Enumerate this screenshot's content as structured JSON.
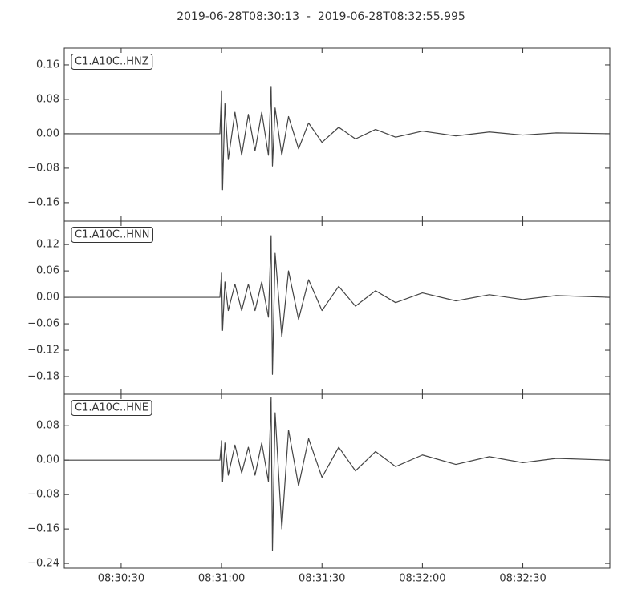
{
  "title": "2019-06-28T08:30:13  -  2019-06-28T08:32:55.995",
  "chart_data": [
    {
      "type": "line",
      "label": "C1.A10C..HNZ",
      "color": "#444444",
      "xlim": [
        30613,
        30775.995
      ],
      "ylim": [
        -0.203,
        0.199
      ],
      "yticks": [
        {
          "value": -0.16,
          "label": "−0.16"
        },
        {
          "value": -0.08,
          "label": "−0.08"
        },
        {
          "value": 0,
          "label": "0.00"
        },
        {
          "value": 0.08,
          "label": "0.08"
        },
        {
          "value": 0.16,
          "label": "0.16"
        }
      ],
      "x": [
        30613,
        30659.5,
        30660,
        30660.3,
        30661,
        30662,
        30664,
        30666,
        30668,
        30670,
        30672,
        30674,
        30674.8,
        30675.2,
        30676,
        30678,
        30680,
        30683,
        30686,
        30690,
        30695,
        30700,
        30706,
        30712,
        30720,
        30730,
        30740,
        30750,
        30760,
        30775.9
      ],
      "values": [
        0,
        0,
        0.1,
        -0.13,
        0.07,
        -0.06,
        0.05,
        -0.05,
        0.045,
        -0.04,
        0.05,
        -0.05,
        0.11,
        -0.075,
        0.06,
        -0.05,
        0.04,
        -0.035,
        0.025,
        -0.02,
        0.015,
        -0.012,
        0.01,
        -0.008,
        0.006,
        -0.005,
        0.004,
        -0.003,
        0.002,
        0
      ]
    },
    {
      "type": "line",
      "label": "C1.A10C..HNN",
      "color": "#444444",
      "xlim": [
        30613,
        30775.995
      ],
      "ylim": [
        -0.22,
        0.173
      ],
      "yticks": [
        {
          "value": -0.18,
          "label": "−0.18"
        },
        {
          "value": -0.12,
          "label": "−0.12"
        },
        {
          "value": -0.06,
          "label": "−0.06"
        },
        {
          "value": 0,
          "label": "0.00"
        },
        {
          "value": 0.06,
          "label": "0.06"
        },
        {
          "value": 0.12,
          "label": "0.12"
        }
      ],
      "x": [
        30613,
        30659.5,
        30660,
        30660.3,
        30661,
        30662,
        30664,
        30666,
        30668,
        30670,
        30672,
        30674,
        30674.8,
        30675.2,
        30676,
        30678,
        30680,
        30683,
        30686,
        30690,
        30695,
        30700,
        30706,
        30712,
        30720,
        30730,
        30740,
        30750,
        30760,
        30775.9
      ],
      "values": [
        0,
        0,
        0.055,
        -0.075,
        0.035,
        -0.03,
        0.03,
        -0.03,
        0.03,
        -0.03,
        0.035,
        -0.045,
        0.14,
        -0.175,
        0.1,
        -0.09,
        0.06,
        -0.05,
        0.04,
        -0.03,
        0.025,
        -0.02,
        0.015,
        -0.012,
        0.01,
        -0.008,
        0.006,
        -0.005,
        0.004,
        0
      ]
    },
    {
      "type": "line",
      "label": "C1.A10C..HNE",
      "color": "#444444",
      "xlim": [
        30613,
        30775.995
      ],
      "ylim": [
        -0.251,
        0.153
      ],
      "yticks": [
        {
          "value": -0.24,
          "label": "−0.24"
        },
        {
          "value": -0.16,
          "label": "−0.16"
        },
        {
          "value": -0.08,
          "label": "−0.08"
        },
        {
          "value": 0,
          "label": "0.00"
        },
        {
          "value": 0.08,
          "label": "0.08"
        }
      ],
      "xticks": [
        {
          "value": 30630,
          "label": "08:30:30"
        },
        {
          "value": 30660,
          "label": "08:31:00"
        },
        {
          "value": 30690,
          "label": "08:31:30"
        },
        {
          "value": 30720,
          "label": "08:32:00"
        },
        {
          "value": 30750,
          "label": "08:32:30"
        }
      ],
      "x": [
        30613,
        30659.5,
        30660,
        30660.3,
        30661,
        30662,
        30664,
        30666,
        30668,
        30670,
        30672,
        30674,
        30674.8,
        30675.2,
        30676,
        30678,
        30680,
        30683,
        30686,
        30690,
        30695,
        30700,
        30706,
        30712,
        30720,
        30730,
        30740,
        30750,
        30760,
        30775.9
      ],
      "values": [
        0,
        0,
        0.045,
        -0.05,
        0.04,
        -0.035,
        0.035,
        -0.03,
        0.03,
        -0.035,
        0.04,
        -0.05,
        0.145,
        -0.21,
        0.11,
        -0.16,
        0.07,
        -0.06,
        0.05,
        -0.04,
        0.03,
        -0.025,
        0.02,
        -0.015,
        0.012,
        -0.01,
        0.008,
        -0.006,
        0.004,
        0
      ]
    }
  ]
}
